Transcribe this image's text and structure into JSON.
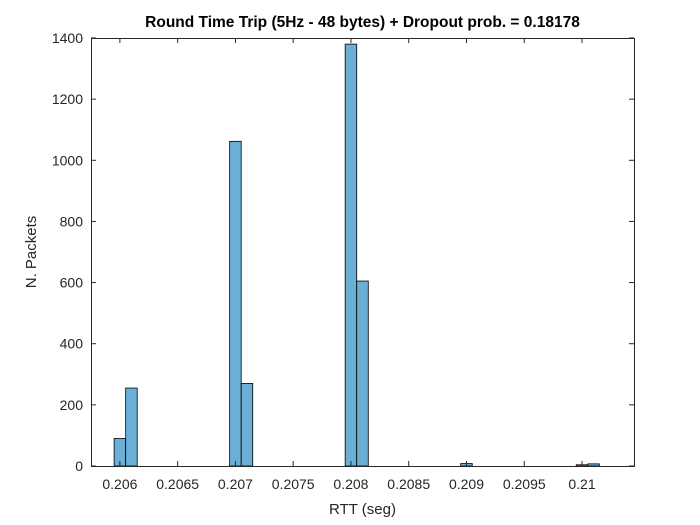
{
  "chart_data": {
    "type": "bar",
    "title": "Round Time Trip (5Hz - 48 bytes) + Dropout prob. = 0.18178",
    "xlabel": "RTT (seg)",
    "ylabel": "N. Packets",
    "xlim": [
      0.20575,
      0.21045
    ],
    "ylim": [
      0,
      1400
    ],
    "bin_width": 0.0001,
    "xticks": [
      0.206,
      0.2065,
      0.207,
      0.2075,
      0.208,
      0.2085,
      0.209,
      0.2095,
      0.21
    ],
    "xtick_labels": [
      "0.206",
      "0.2065",
      "0.207",
      "0.2075",
      "0.208",
      "0.2085",
      "0.209",
      "0.2095",
      "0.21"
    ],
    "yticks": [
      0,
      200,
      400,
      600,
      800,
      1000,
      1200,
      1400
    ],
    "ytick_labels": [
      "0",
      "200",
      "400",
      "600",
      "800",
      "1000",
      "1200",
      "1400"
    ],
    "bar_color": "#6baed6",
    "bar_edge_color": "#000000",
    "bins": [
      {
        "start": 0.20595,
        "end": 0.20605,
        "count": 90
      },
      {
        "start": 0.20605,
        "end": 0.20615,
        "count": 255
      },
      {
        "start": 0.20695,
        "end": 0.20705,
        "count": 1062
      },
      {
        "start": 0.20705,
        "end": 0.20715,
        "count": 270
      },
      {
        "start": 0.20795,
        "end": 0.20805,
        "count": 1380
      },
      {
        "start": 0.20805,
        "end": 0.20815,
        "count": 605
      },
      {
        "start": 0.20895,
        "end": 0.20905,
        "count": 8
      },
      {
        "start": 0.20995,
        "end": 0.21005,
        "count": 4
      },
      {
        "start": 0.21005,
        "end": 0.21015,
        "count": 7
      }
    ],
    "grid": false,
    "box": true
  }
}
